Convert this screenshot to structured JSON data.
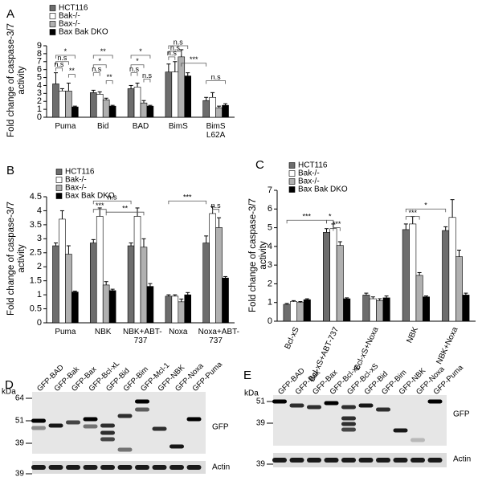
{
  "chart_data": [
    {
      "type": "bar",
      "label": "A",
      "ylabel": "Fold change of caspase-3/7 activity",
      "categories": [
        "Puma",
        "Bid",
        "BAD",
        "BimS",
        "BimS L62A"
      ],
      "series": [
        {
          "name": "HCT116",
          "color": "#6d6d6d",
          "values": [
            4.2,
            3.1,
            3.6,
            5.7,
            2.1
          ],
          "errors": [
            1.4,
            0.3,
            0.4,
            1.0,
            0.4
          ]
        },
        {
          "name": "Bak-/-",
          "color": "#ffffff",
          "values": [
            3.3,
            2.9,
            3.8,
            5.7,
            2.5
          ],
          "errors": [
            0.3,
            0.3,
            0.5,
            1.3,
            0.6
          ]
        },
        {
          "name": "Bax-/-",
          "color": "#b0b0b0",
          "values": [
            3.3,
            2.2,
            1.8,
            7.6,
            1.2
          ],
          "errors": [
            1.0,
            0.2,
            0.3,
            0.9,
            0.2
          ]
        },
        {
          "name": "Bax Bak DKO",
          "color": "#000000",
          "values": [
            1.3,
            1.4,
            1.4,
            5.2,
            1.5
          ],
          "errors": [
            0.1,
            0.1,
            0.1,
            0.4,
            0.2
          ]
        }
      ],
      "ylim": [
        0,
        9
      ],
      "yticks": [
        0,
        1,
        2,
        3,
        4,
        5,
        6,
        7,
        8,
        9
      ],
      "legend": "outside-top-left",
      "annotations": [
        "*",
        "n.s",
        "n.s",
        "**",
        "**",
        "*",
        "n.s",
        "**",
        "*",
        "*",
        "n.s",
        "n.s",
        "n.s",
        "n.s",
        "n.s",
        "***",
        "n.s"
      ]
    },
    {
      "type": "bar",
      "label": "B",
      "ylabel": "Fold change of caspase-3/7 activity",
      "categories": [
        "Puma",
        "NBK",
        "NBK+ABT-737",
        "Noxa",
        "Noxa+ABT-737"
      ],
      "series": [
        {
          "name": "HCT116",
          "color": "#6d6d6d",
          "values": [
            2.75,
            2.85,
            2.75,
            0.95,
            2.85
          ],
          "errors": [
            0.1,
            0.12,
            0.1,
            0.05,
            0.25
          ]
        },
        {
          "name": "Bak-/-",
          "color": "#ffffff",
          "values": [
            3.7,
            3.8,
            3.8,
            0.95,
            3.9
          ],
          "errors": [
            0.3,
            0.3,
            0.3,
            0.05,
            0.25
          ]
        },
        {
          "name": "Bax-/-",
          "color": "#b0b0b0",
          "values": [
            2.45,
            1.35,
            2.7,
            0.75,
            3.4
          ],
          "errors": [
            0.3,
            0.12,
            0.3,
            0.1,
            0.35
          ]
        },
        {
          "name": "Bax Bak DKO",
          "color": "#000000",
          "values": [
            1.1,
            1.15,
            1.3,
            1.0,
            1.6
          ],
          "errors": [
            0.03,
            0.05,
            0.1,
            0.08,
            0.05
          ]
        }
      ],
      "ylim": [
        0,
        4.5
      ],
      "yticks": [
        0,
        0.5,
        1,
        1.5,
        2,
        2.5,
        3,
        3.5,
        4,
        4.5
      ],
      "legend": "top-left",
      "annotations": [
        "n.s",
        "***",
        "**",
        "***",
        "n.s"
      ]
    },
    {
      "type": "bar",
      "label": "C",
      "ylabel": "Fold change of caspase-3/7 activity",
      "categories": [
        "Bcl-xS",
        "Bcl-xS+ABT-737",
        "Bcl-xS+Noxa",
        "NBK",
        "NBK+Noxa"
      ],
      "series": [
        {
          "name": "HCT116",
          "color": "#6d6d6d",
          "values": [
            0.9,
            4.75,
            1.4,
            4.9,
            4.85
          ],
          "errors": [
            0.05,
            0.2,
            0.1,
            0.3,
            0.2
          ]
        },
        {
          "name": "Bak-/-",
          "color": "#ffffff",
          "values": [
            1.05,
            4.95,
            1.2,
            5.2,
            5.55
          ],
          "errors": [
            0.05,
            0.25,
            0.1,
            0.4,
            0.95
          ]
        },
        {
          "name": "Bax-/-",
          "color": "#b0b0b0",
          "values": [
            1.0,
            4.05,
            1.1,
            2.45,
            3.45
          ],
          "errors": [
            0.05,
            0.2,
            0.1,
            0.15,
            0.35
          ]
        },
        {
          "name": "Bax Bak DKO",
          "color": "#000000",
          "values": [
            1.15,
            1.2,
            1.25,
            1.3,
            1.4
          ],
          "errors": [
            0.05,
            0.05,
            0.1,
            0.05,
            0.1
          ]
        }
      ],
      "ylim": [
        0,
        7
      ],
      "yticks": [
        0,
        1,
        2,
        3,
        4,
        5,
        6,
        7
      ],
      "legend": "top-left",
      "rotate_labels": true,
      "annotations": [
        "***",
        "*",
        "***",
        "***",
        "*"
      ]
    }
  ],
  "blots": [
    {
      "label": "D",
      "unit": "kDa",
      "markers": [
        64,
        51,
        39,
        39
      ],
      "lanes": [
        "GFP-BAD",
        "GFP-Bak",
        "GFP-Bax",
        "GFP-Bcl-xL",
        "GFP-Bid",
        "GFP-Bim",
        "GFP-Mcl-1",
        "GFP-NBK",
        "GFP-Noxa",
        "GFP-Puma"
      ],
      "bands": [
        "GFP",
        "Actin"
      ]
    },
    {
      "label": "E",
      "unit": "kDa",
      "markers": [
        51,
        39,
        39
      ],
      "lanes": [
        "GFP-BAD",
        "GFP-Bak",
        "GFP-Bax",
        "GFP-Bcl-xL",
        "GFP-Bcl-xS",
        "GFP-Bid",
        "GFP-Bim",
        "GFP-NBK",
        "GFP-Noxa",
        "GFP-Puma"
      ],
      "bands": [
        "GFP",
        "Actin"
      ]
    }
  ]
}
